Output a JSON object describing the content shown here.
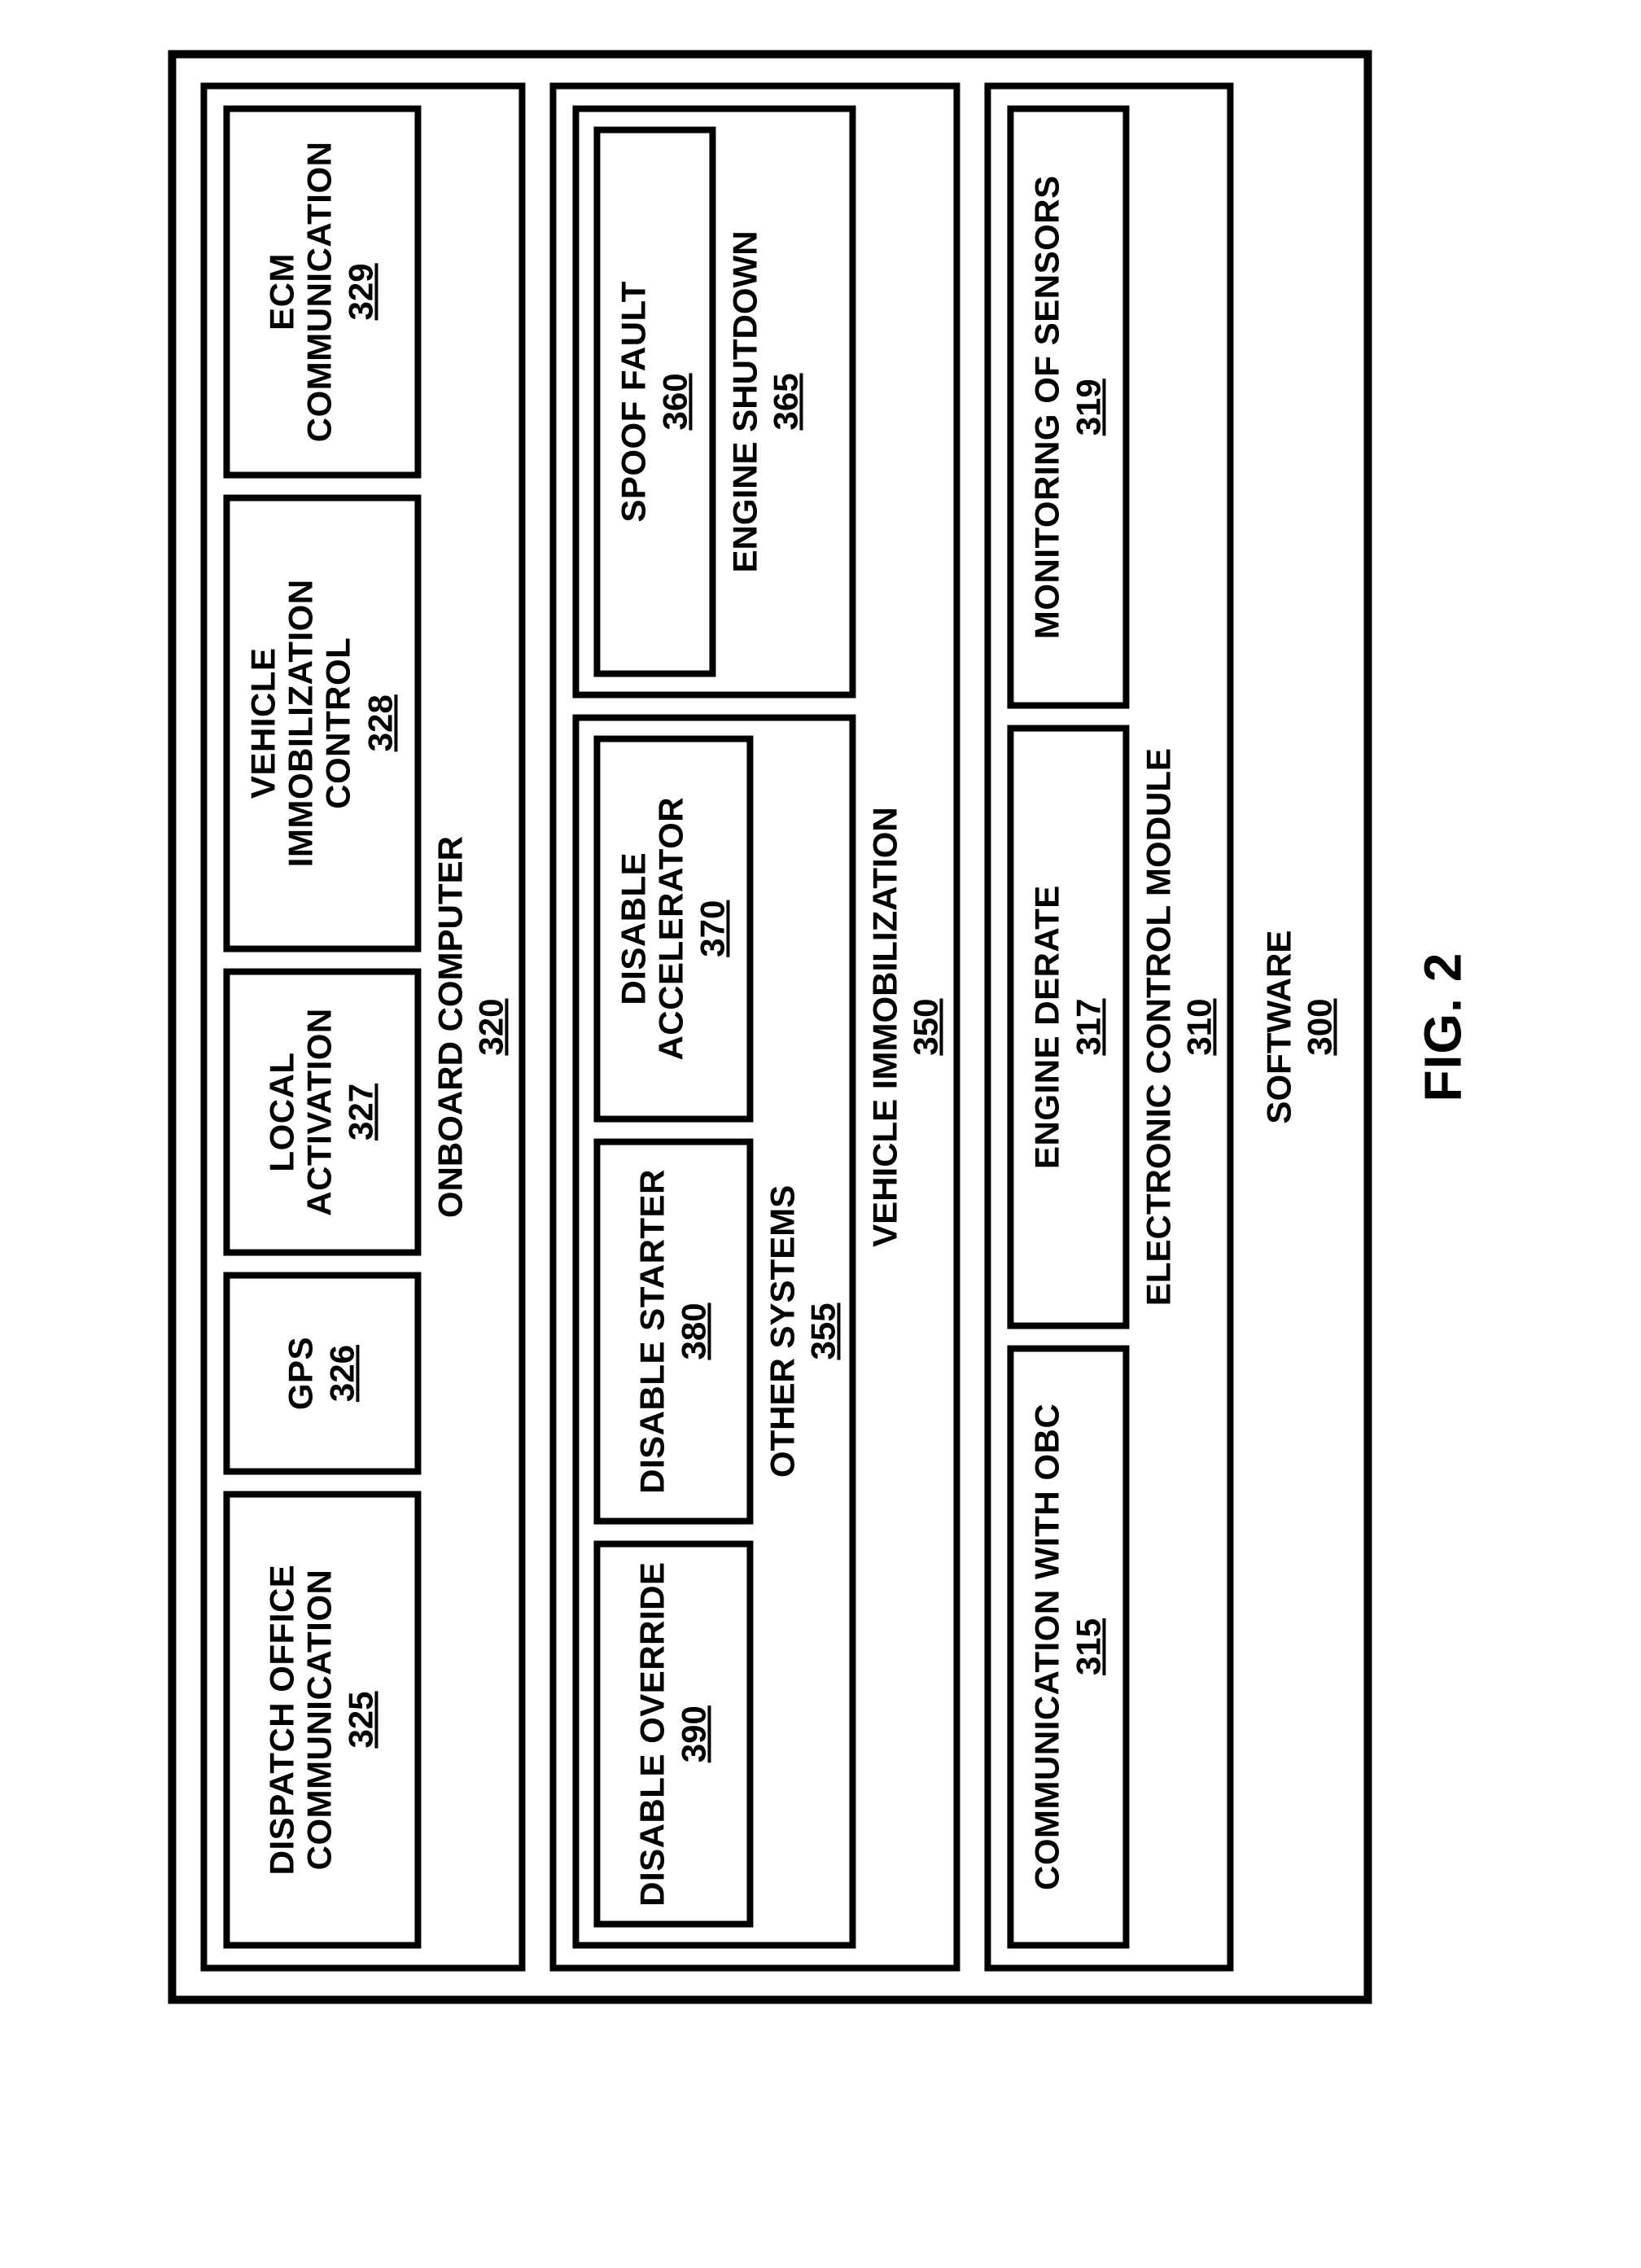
{
  "figure_label": "FIG. 2",
  "software": {
    "label": "SOFTWARE",
    "ref": "300",
    "onboard_computer": {
      "label": "ONBOARD COMPUTER",
      "ref": "320",
      "dispatch": {
        "label": "DISPATCH OFFICE COMMUNICATION",
        "ref": "325"
      },
      "gps": {
        "label": "GPS",
        "ref": "326"
      },
      "local": {
        "label": "LOCAL ACTIVATION",
        "ref": "327"
      },
      "vic": {
        "label": "VEHICLE IMMOBILIZATION CONTROL",
        "ref": "328"
      },
      "ecm_comm": {
        "label": "ECM COMMUNICATION",
        "ref": "329"
      }
    },
    "vehicle_immobilization": {
      "label": "VEHICLE IMMOBILIZATION",
      "ref": "350",
      "other_systems": {
        "label": "OTHER SYSTEMS",
        "ref": "355",
        "disable_override": {
          "label": "DISABLE OVERRIDE",
          "ref": "390"
        },
        "disable_starter": {
          "label": "DISABLE STARTER",
          "ref": "380"
        },
        "disable_accelerator": {
          "label": "DISABLE ACCELERATOR",
          "ref": "370"
        }
      },
      "engine_shutdown": {
        "label": "ENGINE SHUTDOWN",
        "ref": "365",
        "spoof_fault": {
          "label": "SPOOF FAULT",
          "ref": "360"
        }
      }
    },
    "ecm": {
      "label": "ELECTRONIC CONTROL MODULE",
      "ref": "310",
      "comm_obc": {
        "label": "COMMUNICATION WITH OBC",
        "ref": "315"
      },
      "derate": {
        "label": "ENGINE DERATE",
        "ref": "317"
      },
      "sensors": {
        "label": "MONITORING OF SENSORS",
        "ref": "319"
      }
    }
  }
}
